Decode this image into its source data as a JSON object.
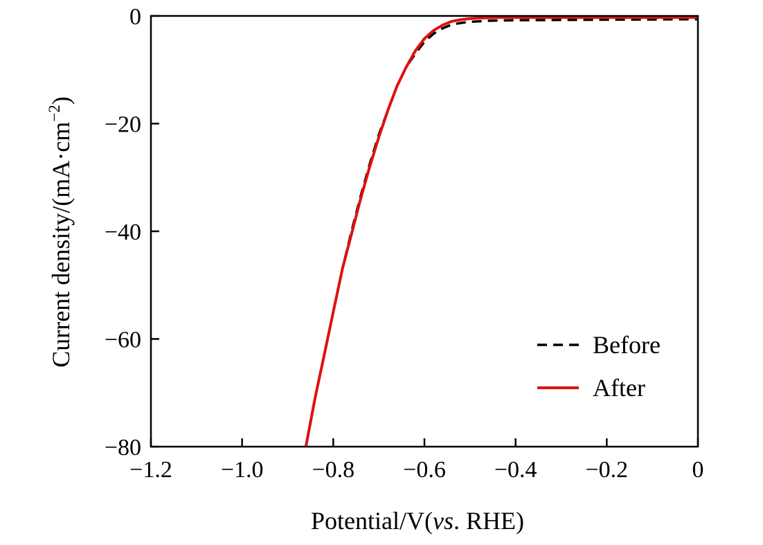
{
  "chart_data": {
    "type": "line",
    "xlabel": {
      "prefix": "Potential/V(",
      "italic": "vs",
      "suffix": ". RHE)"
    },
    "ylabel": {
      "main": "Current density/(mA·cm",
      "superscript": "−2",
      "close": ")"
    },
    "xlim": [
      -1.2,
      0
    ],
    "ylim": [
      -80,
      0
    ],
    "x_ticks": [
      -1.2,
      -1.0,
      -0.8,
      -0.6,
      -0.4,
      -0.2,
      0
    ],
    "x_tick_labels": [
      "−1.2",
      "−1.0",
      "−0.8",
      "−0.6",
      "−0.4",
      "−0.2",
      "0"
    ],
    "y_ticks": [
      0,
      -20,
      -40,
      -60,
      -80
    ],
    "y_tick_labels": [
      "0",
      "−20",
      "−40",
      "−60",
      "−80"
    ],
    "grid": false,
    "legend_position": "bottom-right",
    "series": [
      {
        "name": "Before",
        "color": "#000000",
        "style": "dashed",
        "x": [
          -0.86,
          -0.84,
          -0.82,
          -0.8,
          -0.78,
          -0.76,
          -0.74,
          -0.72,
          -0.7,
          -0.68,
          -0.66,
          -0.64,
          -0.62,
          -0.6,
          -0.58,
          -0.56,
          -0.54,
          -0.52,
          -0.5,
          -0.48,
          -0.46,
          -0.44,
          -0.4,
          -0.3,
          -0.2,
          -0.1,
          0
        ],
        "y": [
          -80,
          -71,
          -63,
          -55,
          -47,
          -40,
          -33.5,
          -27.5,
          -22,
          -17.5,
          -13,
          -9.5,
          -7,
          -4.8,
          -3.3,
          -2.3,
          -1.6,
          -1.3,
          -1.1,
          -1.0,
          -0.9,
          -0.85,
          -0.8,
          -0.75,
          -0.7,
          -0.65,
          -0.6
        ]
      },
      {
        "name": "After",
        "color": "#e01010",
        "style": "solid",
        "x": [
          -0.86,
          -0.84,
          -0.82,
          -0.8,
          -0.78,
          -0.76,
          -0.74,
          -0.72,
          -0.7,
          -0.68,
          -0.66,
          -0.64,
          -0.62,
          -0.6,
          -0.58,
          -0.56,
          -0.54,
          -0.52,
          -0.5,
          -0.48,
          -0.46,
          -0.44,
          -0.4,
          -0.3,
          -0.2,
          -0.1,
          0
        ],
        "y": [
          -80,
          -71,
          -63,
          -55,
          -47,
          -40.5,
          -34,
          -28,
          -22.5,
          -17.5,
          -13,
          -9.5,
          -6.5,
          -4.2,
          -2.7,
          -1.7,
          -1.0,
          -0.7,
          -0.5,
          -0.4,
          -0.35,
          -0.3,
          -0.3,
          -0.3,
          -0.3,
          -0.3,
          -0.3
        ]
      }
    ]
  }
}
